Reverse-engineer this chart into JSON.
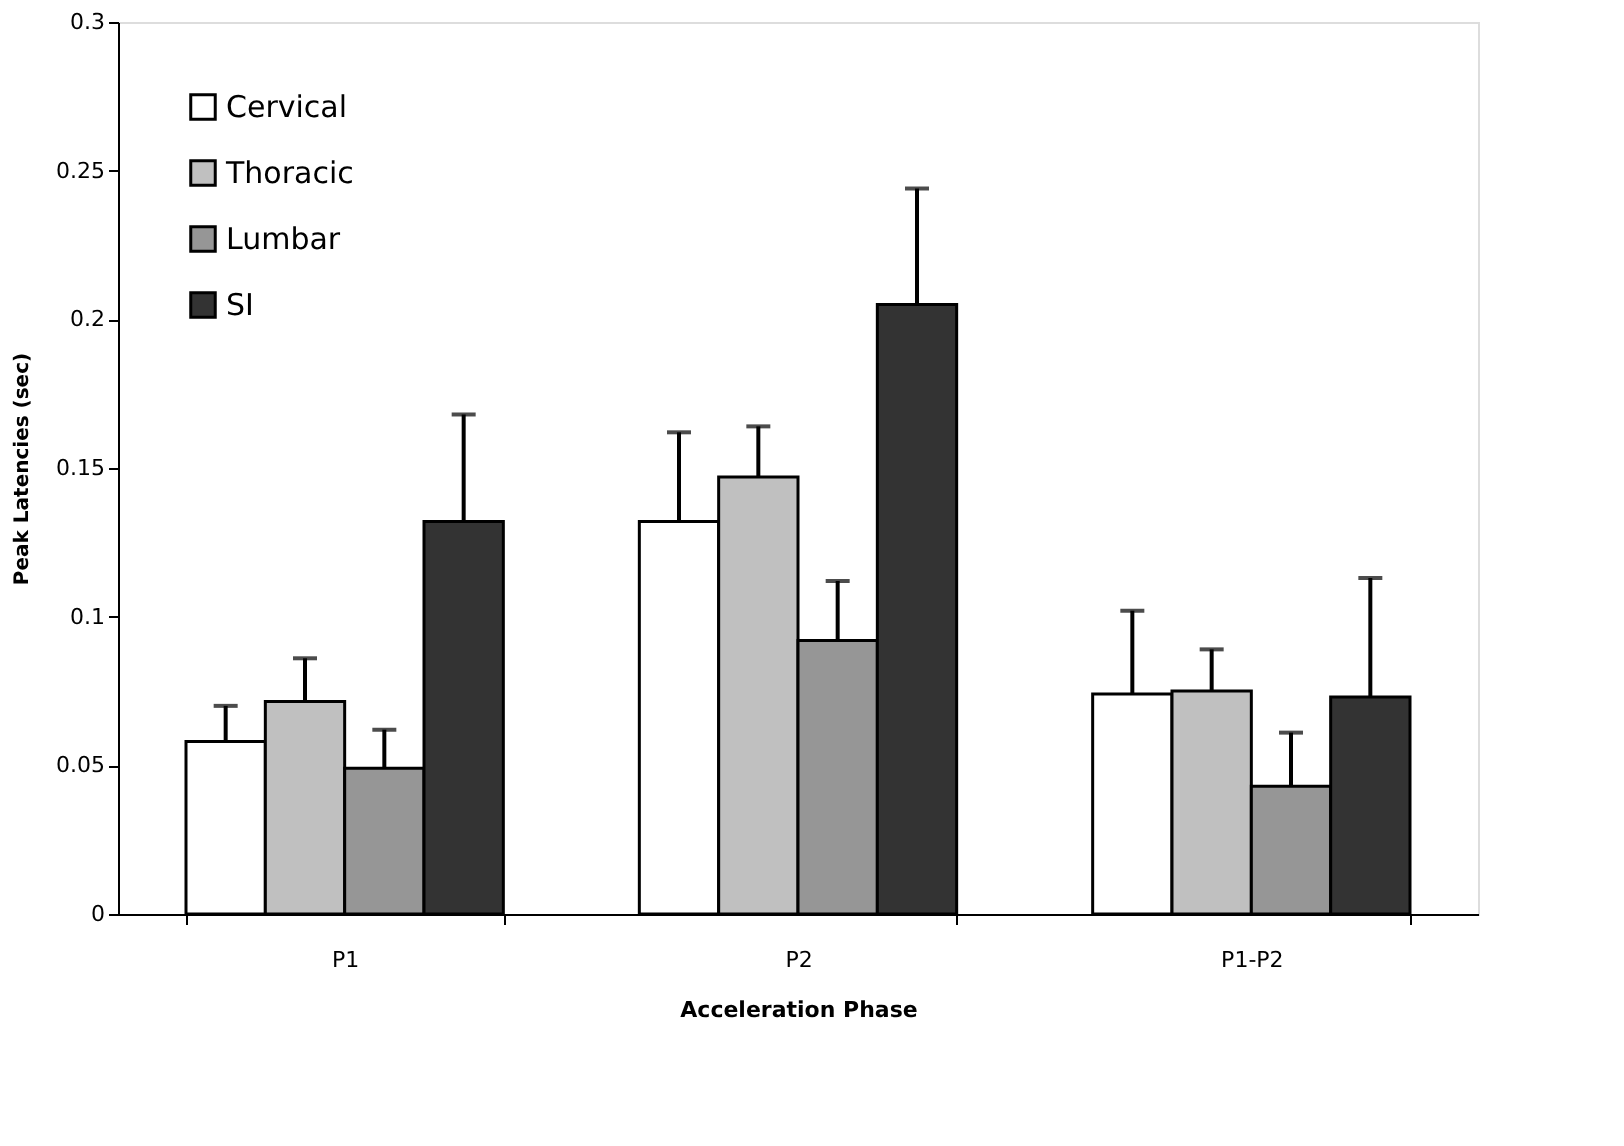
{
  "chart_data": {
    "type": "bar",
    "xlabel": "Acceleration Phase",
    "ylabel": "Peak Latencies (sec)",
    "categories": [
      "P1",
      "P2",
      "P1-P2"
    ],
    "series": [
      {
        "name": "Cervical",
        "color": "#ffffff",
        "values": [
          0.058,
          0.132,
          0.074
        ],
        "errors": [
          [
            0.058,
            0.07
          ],
          [
            0.132,
            0.162
          ],
          [
            0.074,
            0.102
          ]
        ]
      },
      {
        "name": "Thoracic",
        "color": "#c0c0c0",
        "values": [
          0.0715,
          0.147,
          0.075
        ],
        "errors": [
          [
            0.0715,
            0.086
          ],
          [
            0.147,
            0.164
          ],
          [
            0.075,
            0.089
          ]
        ]
      },
      {
        "name": "Lumbar",
        "color": "#969696",
        "values": [
          0.049,
          0.092,
          0.043
        ],
        "errors": [
          [
            0.049,
            0.062
          ],
          [
            0.092,
            0.112
          ],
          [
            0.043,
            0.061
          ]
        ]
      },
      {
        "name": "SI",
        "color": "#333333",
        "values": [
          0.132,
          0.205,
          0.073
        ],
        "errors": [
          [
            0.132,
            0.168
          ],
          [
            0.205,
            0.244
          ],
          [
            0.073,
            0.113
          ]
        ]
      }
    ],
    "ylim": [
      0,
      0.3
    ],
    "yticks": [
      0,
      0.05,
      0.1,
      0.15,
      0.2,
      0.25,
      0.3
    ],
    "grid": false,
    "legend": "top left"
  }
}
